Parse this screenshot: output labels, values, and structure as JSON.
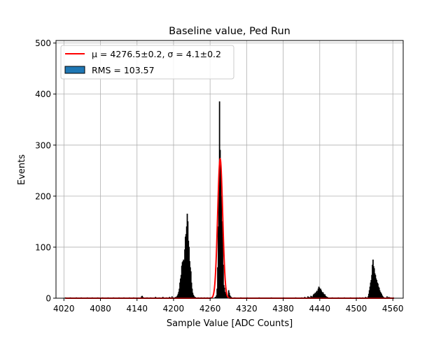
{
  "chart_data": {
    "type": "bar",
    "title": "Baseline value, Ped Run",
    "xlabel": "Sample Value [ADC Counts]",
    "ylabel": "Events",
    "xlim": [
      4007,
      4577
    ],
    "ylim": [
      0,
      505
    ],
    "xticks": [
      4020,
      4080,
      4140,
      4200,
      4260,
      4320,
      4380,
      4440,
      4500,
      4560
    ],
    "yticks": [
      0,
      100,
      200,
      300,
      400,
      500
    ],
    "grid": true,
    "legend_position": "top-left",
    "legend": {
      "fit_label": "μ = 4276.5±0.2, σ = 4.1±0.2",
      "hist_label": "RMS = 103.57"
    },
    "colors": {
      "histogram": "#1f77b4",
      "edge": "#000000",
      "fit": "#ff0000",
      "grid": "#b0b0b0"
    },
    "fit": {
      "type": "gaussian",
      "mu": 4276.5,
      "sigma": 4.1,
      "amplitude": 273,
      "x_range": [
        4022,
        4562
      ]
    },
    "histogram": {
      "bin_width": 1,
      "bins": [
        [
          4022,
          1
        ],
        [
          4030,
          1
        ],
        [
          4040,
          1
        ],
        [
          4048,
          1
        ],
        [
          4058,
          1
        ],
        [
          4066,
          1
        ],
        [
          4075,
          1
        ],
        [
          4083,
          1
        ],
        [
          4092,
          1
        ],
        [
          4101,
          1
        ],
        [
          4110,
          1
        ],
        [
          4118,
          1
        ],
        [
          4127,
          1
        ],
        [
          4134,
          1
        ],
        [
          4147,
          3
        ],
        [
          4148,
          4
        ],
        [
          4149,
          2
        ],
        [
          4156,
          1
        ],
        [
          4162,
          1
        ],
        [
          4170,
          2
        ],
        [
          4176,
          1
        ],
        [
          4182,
          2
        ],
        [
          4188,
          1
        ],
        [
          4193,
          2
        ],
        [
          4197,
          3
        ],
        [
          4200,
          1
        ],
        [
          4203,
          2
        ],
        [
          4205,
          3
        ],
        [
          4206,
          5
        ],
        [
          4207,
          8
        ],
        [
          4208,
          12
        ],
        [
          4209,
          18
        ],
        [
          4210,
          30
        ],
        [
          4211,
          38
        ],
        [
          4212,
          45
        ],
        [
          4213,
          63
        ],
        [
          4214,
          70
        ],
        [
          4215,
          72
        ],
        [
          4216,
          75
        ],
        [
          4217,
          72
        ],
        [
          4218,
          95
        ],
        [
          4219,
          120
        ],
        [
          4220,
          125
        ],
        [
          4221,
          140
        ],
        [
          4222,
          165
        ],
        [
          4223,
          150
        ],
        [
          4224,
          112
        ],
        [
          4225,
          100
        ],
        [
          4226,
          72
        ],
        [
          4227,
          60
        ],
        [
          4228,
          52
        ],
        [
          4229,
          30
        ],
        [
          4230,
          18
        ],
        [
          4231,
          10
        ],
        [
          4232,
          6
        ],
        [
          4233,
          4
        ],
        [
          4234,
          2
        ],
        [
          4235,
          2
        ],
        [
          4240,
          1
        ],
        [
          4245,
          1
        ],
        [
          4250,
          1
        ],
        [
          4255,
          1
        ],
        [
          4260,
          1
        ],
        [
          4268,
          2
        ],
        [
          4270,
          5
        ],
        [
          4271,
          18
        ],
        [
          4272,
          60
        ],
        [
          4273,
          140
        ],
        [
          4274,
          218
        ],
        [
          4275,
          385
        ],
        [
          4276,
          290
        ],
        [
          4277,
          260
        ],
        [
          4278,
          200
        ],
        [
          4279,
          150
        ],
        [
          4280,
          120
        ],
        [
          4281,
          65
        ],
        [
          4282,
          25
        ],
        [
          4283,
          20
        ],
        [
          4284,
          12
        ],
        [
          4285,
          8
        ],
        [
          4286,
          10
        ],
        [
          4287,
          5
        ],
        [
          4288,
          3
        ],
        [
          4289,
          2
        ],
        [
          4290,
          15
        ],
        [
          4291,
          10
        ],
        [
          4292,
          5
        ],
        [
          4293,
          3
        ],
        [
          4294,
          2
        ],
        [
          4300,
          1
        ],
        [
          4310,
          1
        ],
        [
          4320,
          1
        ],
        [
          4340,
          1
        ],
        [
          4360,
          1
        ],
        [
          4380,
          1
        ],
        [
          4400,
          1
        ],
        [
          4410,
          1
        ],
        [
          4415,
          2
        ],
        [
          4420,
          3
        ],
        [
          4422,
          2
        ],
        [
          4425,
          4
        ],
        [
          4427,
          3
        ],
        [
          4429,
          6
        ],
        [
          4430,
          8
        ],
        [
          4431,
          5
        ],
        [
          4432,
          10
        ],
        [
          4433,
          7
        ],
        [
          4434,
          12
        ],
        [
          4435,
          14
        ],
        [
          4436,
          10
        ],
        [
          4437,
          18
        ],
        [
          4438,
          22
        ],
        [
          4439,
          20
        ],
        [
          4440,
          16
        ],
        [
          4441,
          18
        ],
        [
          4442,
          15
        ],
        [
          4443,
          12
        ],
        [
          4444,
          10
        ],
        [
          4445,
          11
        ],
        [
          4446,
          8
        ],
        [
          4447,
          6
        ],
        [
          4448,
          7
        ],
        [
          4449,
          4
        ],
        [
          4450,
          3
        ],
        [
          4451,
          2
        ],
        [
          4452,
          2
        ],
        [
          4460,
          1
        ],
        [
          4470,
          1
        ],
        [
          4480,
          1
        ],
        [
          4490,
          1
        ],
        [
          4500,
          1
        ],
        [
          4505,
          1
        ],
        [
          4510,
          1
        ],
        [
          4515,
          2
        ],
        [
          4519,
          3
        ],
        [
          4520,
          8
        ],
        [
          4521,
          15
        ],
        [
          4522,
          22
        ],
        [
          4523,
          30
        ],
        [
          4524,
          35
        ],
        [
          4525,
          45
        ],
        [
          4526,
          65
        ],
        [
          4527,
          75
        ],
        [
          4528,
          62
        ],
        [
          4529,
          58
        ],
        [
          4530,
          48
        ],
        [
          4531,
          45
        ],
        [
          4532,
          38
        ],
        [
          4533,
          35
        ],
        [
          4534,
          30
        ],
        [
          4535,
          28
        ],
        [
          4536,
          22
        ],
        [
          4537,
          20
        ],
        [
          4538,
          15
        ],
        [
          4539,
          12
        ],
        [
          4540,
          10
        ],
        [
          4541,
          8
        ],
        [
          4542,
          5
        ],
        [
          4543,
          3
        ],
        [
          4544,
          2
        ],
        [
          4550,
          3
        ],
        [
          4553,
          2
        ],
        [
          4556,
          1
        ],
        [
          4560,
          1
        ]
      ]
    }
  }
}
